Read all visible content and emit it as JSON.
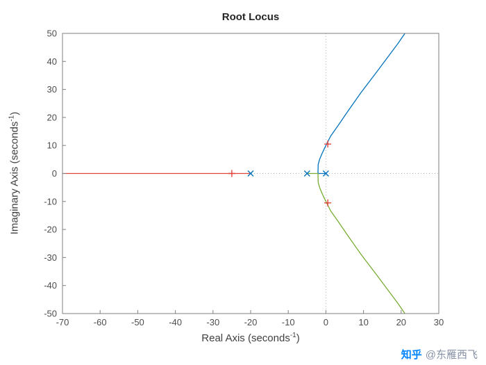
{
  "watermark": {
    "brand": "知乎",
    "handle": "@东雁西飞"
  },
  "chart_data": {
    "type": "line",
    "title": "Root Locus",
    "xlabel": "Real Axis (seconds⁻¹)",
    "ylabel": "Imaginary Axis (seconds⁻¹)",
    "xlabel_parts": {
      "pre": "Real Axis (seconds",
      "sup": "-1",
      "post": ")"
    },
    "ylabel_parts": {
      "pre": "Imaginary Axis (seconds",
      "sup": "-1",
      "post": ")"
    },
    "xlim": [
      -70,
      30
    ],
    "ylim": [
      -50,
      50
    ],
    "xticks": [
      -70,
      -60,
      -50,
      -40,
      -30,
      -20,
      -10,
      0,
      10,
      20,
      30
    ],
    "yticks": [
      -50,
      -40,
      -30,
      -20,
      -10,
      0,
      10,
      20,
      30,
      40,
      50
    ],
    "grid": false,
    "zero_line_color": "#b3b3b3",
    "axis_color": "#7f7f7f",
    "tick_label_color": "#4d4d4d",
    "legend": "none",
    "series": [
      {
        "name": "real-axis-branch",
        "color": "#e2433a",
        "points": [
          [
            -70,
            0
          ],
          [
            -20,
            0
          ]
        ]
      },
      {
        "name": "upper-complex-branch",
        "color": "#0072bd",
        "points": [
          [
            0,
            0
          ],
          [
            -1,
            0
          ],
          [
            -2.11,
            0
          ],
          [
            -2.05,
            3.2
          ],
          [
            -1.68,
            5
          ],
          [
            -1.0,
            7.2
          ],
          [
            0,
            10
          ],
          [
            1.3,
            13.4
          ],
          [
            3.4,
            17.4
          ],
          [
            6.0,
            22.5
          ],
          [
            9.3,
            28.8
          ],
          [
            13.7,
            36.6
          ],
          [
            19.2,
            46.5
          ],
          [
            21,
            50
          ]
        ]
      },
      {
        "name": "lower-complex-branch",
        "color": "#77ac30",
        "points": [
          [
            -5,
            0
          ],
          [
            -3,
            0
          ],
          [
            -2.11,
            0
          ],
          [
            -2.05,
            -3.2
          ],
          [
            -1.68,
            -5
          ],
          [
            -1.0,
            -7.2
          ],
          [
            0,
            -10
          ],
          [
            1.3,
            -13.4
          ],
          [
            3.4,
            -17.4
          ],
          [
            6.0,
            -22.5
          ],
          [
            9.3,
            -28.8
          ],
          [
            13.7,
            -36.6
          ],
          [
            19.2,
            -46.5
          ],
          [
            21,
            -50
          ]
        ]
      }
    ],
    "open_loop_poles": {
      "marker": "x",
      "color": "#0072bd",
      "points": [
        [
          -20,
          0
        ],
        [
          -5,
          0
        ],
        [
          0,
          0
        ]
      ]
    },
    "selected_closed_loop_poles": {
      "marker": "+",
      "color": "#e2433a",
      "points": [
        [
          -25,
          0
        ],
        [
          0.5,
          10.5
        ],
        [
          0.5,
          -10.5
        ]
      ]
    }
  }
}
